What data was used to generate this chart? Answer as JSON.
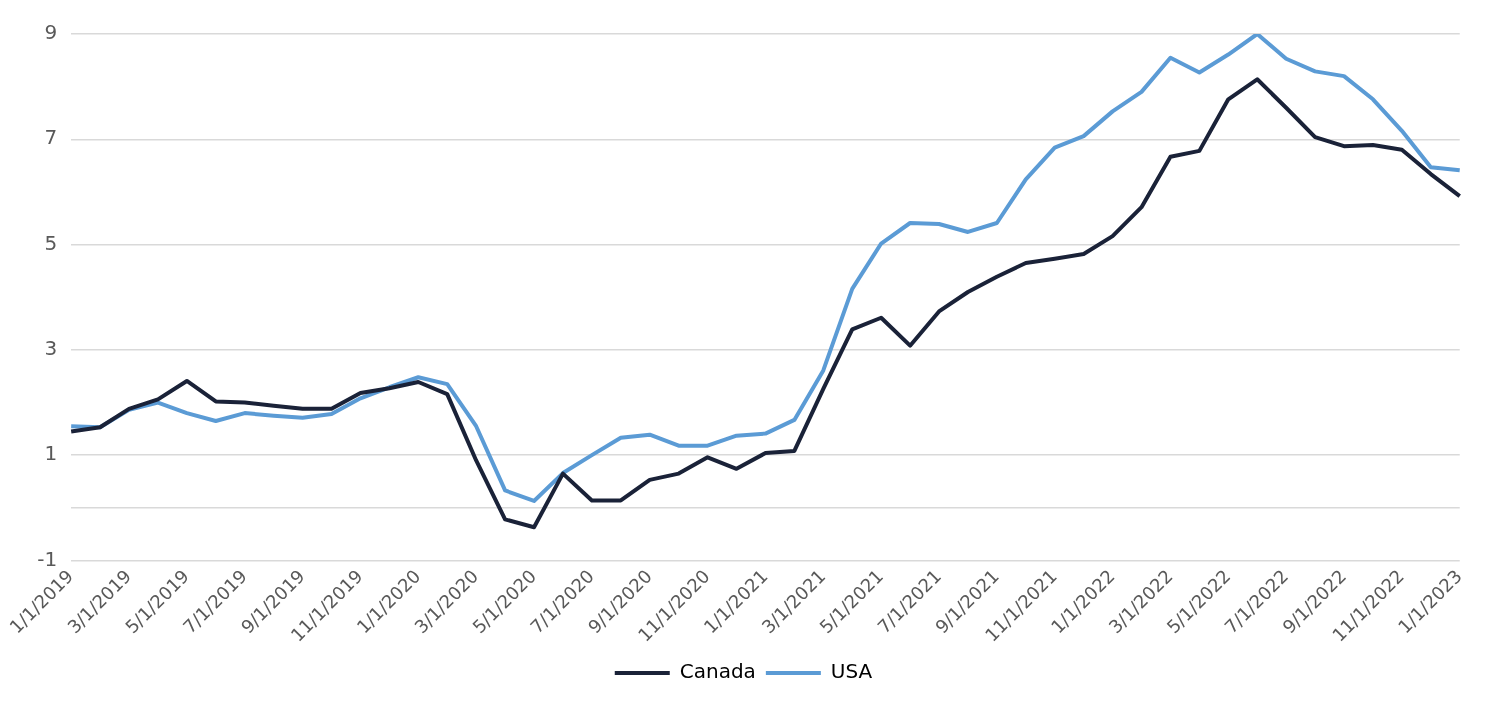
{
  "chart_data": {
    "type": "line",
    "categories": [
      "1/1/2019",
      null,
      "3/1/2019",
      null,
      "5/1/2019",
      null,
      "7/1/2019",
      null,
      "9/1/2019",
      null,
      "11/1/2019",
      null,
      "1/1/2020",
      null,
      "3/1/2020",
      null,
      "5/1/2020",
      null,
      "7/1/2020",
      null,
      "9/1/2020",
      null,
      "11/1/2020",
      null,
      "1/1/2021",
      null,
      "3/1/2021",
      null,
      "5/1/2021",
      null,
      "7/1/2021",
      null,
      "9/1/2021",
      null,
      "11/1/2021",
      null,
      "1/1/2022",
      null,
      "3/1/2022",
      null,
      "5/1/2022",
      null,
      "7/1/2022",
      null,
      "9/1/2022",
      null,
      "11/1/2022",
      null,
      "1/1/2023"
    ],
    "series": [
      {
        "name": "Canada",
        "color": "#1a2238",
        "values": [
          1.45,
          1.53,
          1.88,
          2.06,
          2.41,
          2.02,
          2.0,
          1.94,
          1.88,
          1.88,
          2.18,
          2.27,
          2.39,
          2.16,
          0.9,
          -0.22,
          -0.37,
          0.65,
          0.14,
          0.14,
          0.53,
          0.65,
          0.96,
          0.74,
          1.04,
          1.08,
          2.26,
          3.39,
          3.61,
          3.08,
          3.73,
          4.1,
          4.39,
          4.65,
          4.73,
          4.82,
          5.16,
          5.71,
          6.67,
          6.78,
          7.76,
          8.14,
          7.6,
          7.04,
          6.87,
          6.89,
          6.8,
          6.34,
          5.92
        ]
      },
      {
        "name": "USA",
        "color": "#5b9bd5",
        "values": [
          1.55,
          1.53,
          1.86,
          2.0,
          1.8,
          1.65,
          1.8,
          1.75,
          1.71,
          1.78,
          2.08,
          2.29,
          2.48,
          2.35,
          1.55,
          0.33,
          0.13,
          0.66,
          1.0,
          1.33,
          1.39,
          1.18,
          1.18,
          1.37,
          1.41,
          1.67,
          2.61,
          4.16,
          5.02,
          5.41,
          5.39,
          5.24,
          5.41,
          6.24,
          6.84,
          7.06,
          7.53,
          7.9,
          8.55,
          8.27,
          8.61,
          9.0,
          8.53,
          8.29,
          8.2,
          7.76,
          7.16,
          6.47,
          6.41
        ]
      }
    ],
    "ylim": [
      -1,
      9
    ],
    "yticks": [
      -1,
      {
        "value": 0,
        "label": null
      },
      1,
      3,
      5,
      7,
      9
    ],
    "grid": "y",
    "legend": "bottom",
    "marker": "none",
    "line_style": "solid"
  }
}
